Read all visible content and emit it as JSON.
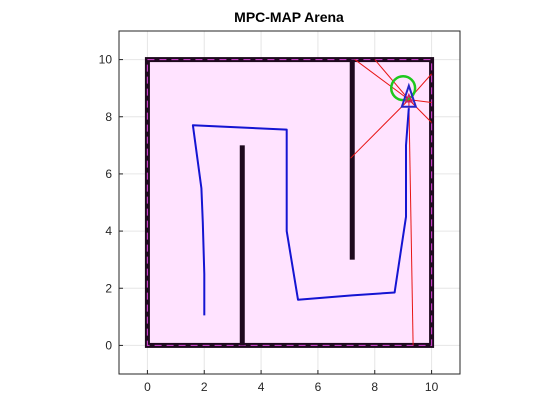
{
  "chart_data": {
    "type": "line",
    "title": "MPC-MAP Arena",
    "xlabel": "",
    "ylabel": "",
    "xlim": [
      -1,
      11
    ],
    "ylim": [
      -1,
      11
    ],
    "xticks": [
      "0",
      "2",
      "4",
      "6",
      "8",
      "10"
    ],
    "yticks": [
      "0",
      "2",
      "4",
      "6",
      "8",
      "10"
    ],
    "grid": true,
    "arena": {
      "x": [
        0,
        10
      ],
      "y": [
        0,
        10
      ],
      "fill_color": "#ffe3ff",
      "wall_color": "#1e0a1e",
      "dash_color": "#c43ec4"
    },
    "obstacles": [
      {
        "x": [
          3.25,
          3.38
        ],
        "y": [
          0,
          7.0
        ]
      },
      {
        "x": [
          7.12,
          7.25
        ],
        "y": [
          3.0,
          10.0
        ]
      }
    ],
    "trajectory": {
      "color": "#1414d2",
      "x": [
        2.0,
        2.0,
        1.95,
        1.9,
        1.6,
        4.9,
        4.9,
        5.3,
        7.2,
        8.7,
        9.1,
        9.1,
        9.2
      ],
      "y": [
        1.05,
        2.5,
        4.3,
        5.5,
        7.7,
        7.55,
        4.0,
        1.6,
        1.75,
        1.85,
        4.5,
        7.0,
        8.3
      ]
    },
    "robot": {
      "x": 9.2,
      "y": 8.7,
      "color": "#2424c8",
      "accent": "#c81e64"
    },
    "goal": {
      "x": 9.0,
      "y": 9.0,
      "r": 0.42,
      "color": "#1ec81e"
    },
    "sensor_rays": {
      "color": "#e81414",
      "origin": [
        9.2,
        8.6
      ],
      "ends": [
        [
          7.15,
          6.55
        ],
        [
          9.35,
          0.0
        ],
        [
          10.0,
          9.5
        ],
        [
          10.0,
          7.8
        ],
        [
          10.0,
          8.5
        ],
        [
          8.0,
          10.0
        ],
        [
          7.3,
          10.0
        ]
      ]
    }
  }
}
